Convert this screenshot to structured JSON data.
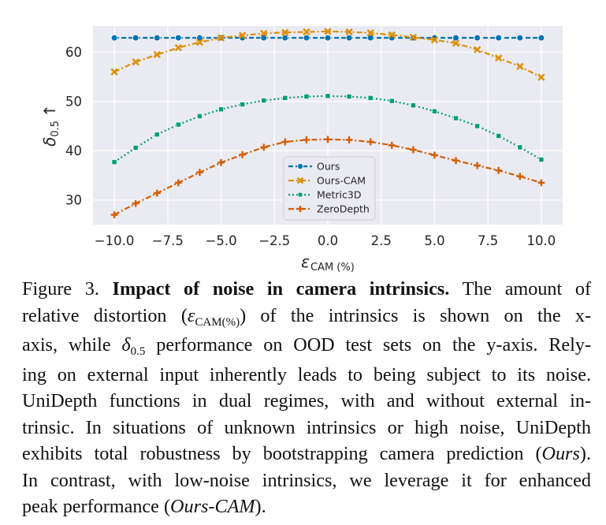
{
  "chart_data": {
    "type": "line",
    "title": "",
    "xlabel_main": "ε",
    "xlabel_sub": "CAM (%)",
    "ylabel_main": "δ",
    "ylabel_sub": "0.5",
    "ylabel_arrow": "↑",
    "x": [
      -10,
      -9,
      -8,
      -7,
      -6,
      -5,
      -4,
      -3,
      -2,
      -1,
      0,
      1,
      2,
      3,
      4,
      5,
      6,
      7,
      8,
      9,
      10
    ],
    "xlim": [
      -11,
      11
    ],
    "ylim": [
      25,
      65.3
    ],
    "xticks": [
      -10,
      -7.5,
      -5,
      -2.5,
      0,
      2.5,
      5,
      7.5,
      10
    ],
    "xtick_labels": [
      "−10.0",
      "−7.5",
      "−5.0",
      "−2.5",
      "0.0",
      "2.5",
      "5.0",
      "7.5",
      "10.0"
    ],
    "yticks": [
      30,
      40,
      50,
      60
    ],
    "ytick_labels": [
      "30",
      "40",
      "50",
      "60"
    ],
    "grid": true,
    "background": "#eaeaf2",
    "legend_position": "lower-center",
    "series": [
      {
        "name": "Ours",
        "color": "#0173b2",
        "marker": "circle",
        "linestyle": "dashed",
        "values": [
          62.9,
          62.9,
          62.9,
          62.9,
          62.9,
          62.9,
          62.9,
          62.9,
          62.9,
          62.9,
          62.9,
          62.9,
          62.9,
          62.9,
          62.9,
          62.9,
          62.9,
          62.9,
          62.9,
          62.9,
          62.9
        ]
      },
      {
        "name": "Ours-CAM",
        "color": "#de8f05",
        "marker": "x",
        "linestyle": "dashdot",
        "values": [
          56.0,
          58.0,
          59.5,
          60.9,
          62.0,
          62.9,
          63.4,
          63.8,
          64.0,
          64.1,
          64.2,
          64.1,
          63.9,
          63.5,
          63.0,
          62.5,
          61.8,
          60.5,
          58.8,
          57.1,
          54.9
        ]
      },
      {
        "name": "Metric3D",
        "color": "#029e73",
        "marker": "square",
        "linestyle": "dotted",
        "values": [
          37.7,
          40.6,
          43.3,
          45.3,
          47.0,
          48.4,
          49.4,
          50.2,
          50.7,
          51.0,
          51.1,
          51.0,
          50.7,
          50.1,
          49.2,
          48.0,
          46.6,
          45.0,
          43.0,
          40.7,
          38.2
        ]
      },
      {
        "name": "ZeroDepth",
        "color": "#d55e00",
        "marker": "plus",
        "linestyle": "dashdot",
        "values": [
          27.0,
          29.3,
          31.4,
          33.5,
          35.6,
          37.6,
          39.2,
          40.7,
          41.8,
          42.2,
          42.3,
          42.2,
          41.8,
          41.1,
          40.2,
          39.1,
          38.0,
          37.0,
          36.0,
          34.8,
          33.5
        ]
      }
    ]
  },
  "caption": {
    "figure_label": "Figure 3.",
    "title": "Impact of noise in camera intrinsics.",
    "l1_rest": "The amount of",
    "l2_a": "relative distortion (",
    "l2_sym": "ε",
    "l2_symsub": "CAM(%)",
    "l2_b": ") of the intrinsics is shown on the x-",
    "l3_a": "axis, while",
    "l3_sym": "δ",
    "l3_symsub": "0.5",
    "l3_b": "performance on OOD test sets on the y-axis. Rely-",
    "l4": "ing on external input inherently leads to being subject to its noise.",
    "l5": "UniDepth functions in dual regimes, with and without external in-",
    "l6": "trinsic. In situations of unknown intrinsics or high noise, UniDepth",
    "l7_a": "exhibits total robustness by bootstrapping camera prediction (",
    "l7_it": "Ours",
    "l7_b": ").",
    "l8": "In contrast, with low-noise intrinsics, we leverage it for enhanced",
    "l9_a": "peak performance (",
    "l9_it": "Ours-CAM",
    "l9_b": ")."
  }
}
